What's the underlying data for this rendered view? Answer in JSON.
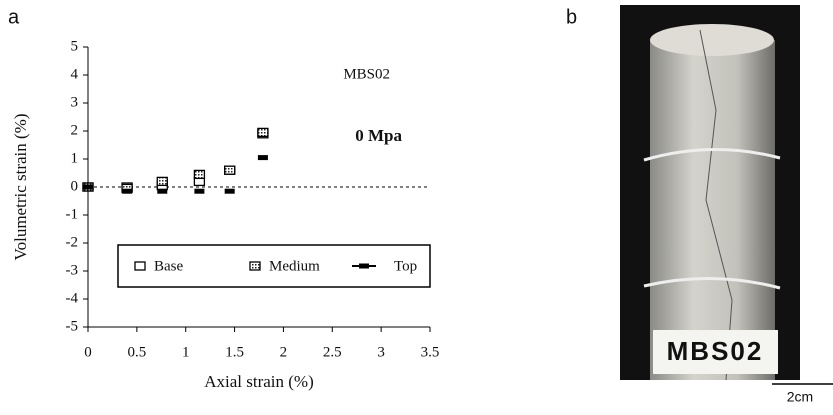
{
  "panel_labels": [
    "a",
    "b"
  ],
  "chart_data": {
    "type": "scatter",
    "xlabel": "Axial strain (%)",
    "ylabel": "Volumetric strain (%)",
    "annotations": [
      "MBS02",
      "0 Mpa"
    ],
    "xlim": [
      0,
      3.5
    ],
    "xticks": [
      0,
      0.5,
      1,
      1.5,
      2,
      2.5,
      3,
      3.5
    ],
    "ylim": [
      -5,
      5
    ],
    "yticks": [
      -5,
      -4,
      -3,
      -2,
      -1,
      0,
      1,
      2,
      3,
      4,
      5
    ],
    "hline": 0,
    "x": [
      0,
      0.4,
      0.76,
      1.14,
      1.45,
      1.79
    ],
    "series": [
      {
        "name": "Base",
        "color": "#000000",
        "marker": "open-square",
        "values": [
          0,
          0,
          0.05,
          0.2,
          0.6,
          1.9
        ]
      },
      {
        "name": "Medium",
        "color": "#000000",
        "marker": "hatched-square",
        "values": [
          0,
          -0.05,
          0.2,
          0.45,
          0.6,
          1.95
        ]
      },
      {
        "name": "Top",
        "color": "#000000",
        "marker": "dash",
        "values": [
          0,
          -0.15,
          -0.15,
          -0.15,
          -0.15,
          1.05
        ]
      }
    ]
  },
  "photo": {
    "label": "MBS02",
    "scale_bar": "2cm"
  }
}
